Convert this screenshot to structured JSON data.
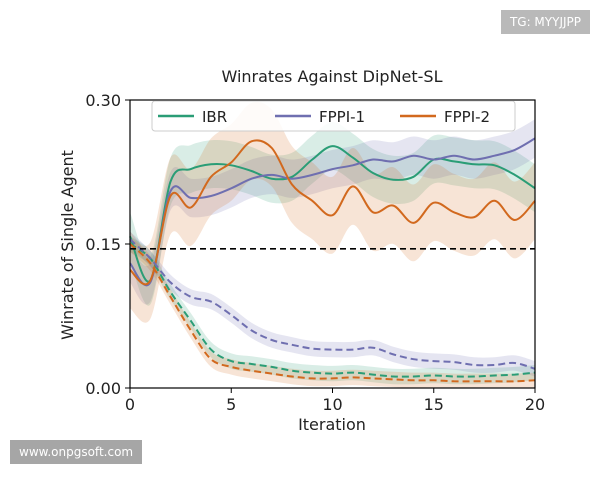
{
  "watermarks": {
    "top_right": "TG: MYYJJPP",
    "bottom_left": "www.onpgsoft.com"
  },
  "chart_data": {
    "type": "line",
    "title": "Winrates Against DipNet-SL",
    "xlabel": "Iteration",
    "ylabel": "Winrate of Single Agent",
    "xlim": [
      0,
      20
    ],
    "ylim": [
      0,
      0.3
    ],
    "xticks": [
      0,
      5,
      10,
      15,
      20
    ],
    "xtick_labels": [
      "0",
      "5",
      "10",
      "15",
      "20"
    ],
    "yticks": [
      0,
      0.15,
      0.3
    ],
    "ytick_labels": [
      "0.00",
      "0.15",
      "0.30"
    ],
    "grid": false,
    "legend_position": "top",
    "baseline": {
      "y": 0.145,
      "style": "dashed",
      "color": "#000000"
    },
    "x": [
      0,
      1,
      2,
      3,
      4,
      5,
      6,
      7,
      8,
      9,
      10,
      11,
      12,
      13,
      14,
      15,
      16,
      17,
      18,
      19,
      20
    ],
    "series": [
      {
        "name": "IBR",
        "color": "#2a9d76",
        "line_style": "solid",
        "values": [
          0.158,
          0.112,
          0.215,
          0.228,
          0.233,
          0.232,
          0.226,
          0.218,
          0.22,
          0.238,
          0.252,
          0.24,
          0.224,
          0.217,
          0.22,
          0.238,
          0.236,
          0.233,
          0.232,
          0.222,
          0.208
        ],
        "band": 0.025
      },
      {
        "name": "FPPI-1",
        "color": "#6f6fb0",
        "line_style": "solid",
        "values": [
          0.13,
          0.11,
          0.205,
          0.198,
          0.2,
          0.208,
          0.218,
          0.222,
          0.218,
          0.222,
          0.228,
          0.232,
          0.238,
          0.236,
          0.242,
          0.238,
          0.242,
          0.238,
          0.242,
          0.248,
          0.26
        ],
        "band": 0.02
      },
      {
        "name": "FPPI-2",
        "color": "#d2691e",
        "line_style": "solid",
        "values": [
          0.123,
          0.112,
          0.2,
          0.188,
          0.22,
          0.235,
          0.257,
          0.25,
          0.212,
          0.195,
          0.18,
          0.21,
          0.183,
          0.19,
          0.172,
          0.193,
          0.183,
          0.178,
          0.195,
          0.175,
          0.195
        ],
        "band": 0.04
      },
      {
        "name": "IBR (dashed)",
        "color": "#2a9d76",
        "line_style": "dashed",
        "in_legend": false,
        "values": [
          0.15,
          0.135,
          0.1,
          0.07,
          0.04,
          0.028,
          0.025,
          0.022,
          0.018,
          0.016,
          0.015,
          0.016,
          0.014,
          0.012,
          0.012,
          0.013,
          0.012,
          0.012,
          0.013,
          0.014,
          0.016
        ],
        "band": 0.008
      },
      {
        "name": "FPPI-1 (dashed)",
        "color": "#6f6fb0",
        "line_style": "dashed",
        "in_legend": false,
        "values": [
          0.155,
          0.135,
          0.11,
          0.095,
          0.09,
          0.076,
          0.06,
          0.05,
          0.045,
          0.041,
          0.04,
          0.04,
          0.042,
          0.035,
          0.03,
          0.028,
          0.027,
          0.024,
          0.024,
          0.026,
          0.02
        ],
        "band": 0.008
      },
      {
        "name": "FPPI-2 (dashed)",
        "color": "#d2691e",
        "line_style": "dashed",
        "in_legend": false,
        "values": [
          0.15,
          0.13,
          0.095,
          0.06,
          0.03,
          0.022,
          0.018,
          0.015,
          0.012,
          0.01,
          0.01,
          0.011,
          0.01,
          0.009,
          0.008,
          0.008,
          0.007,
          0.007,
          0.007,
          0.007,
          0.008
        ],
        "band": 0.008
      }
    ]
  }
}
